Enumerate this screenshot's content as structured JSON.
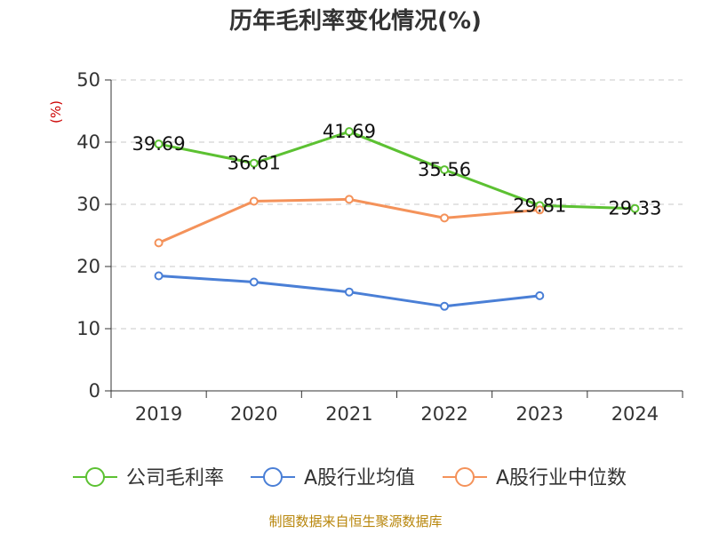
{
  "chart_data": {
    "type": "line",
    "title": "历年毛利率变化情况(%)",
    "y_unit_label": "(%)",
    "categories": [
      "2019",
      "2020",
      "2021",
      "2022",
      "2023",
      "2024"
    ],
    "ylim": [
      0,
      50
    ],
    "yticks": [
      0,
      10,
      20,
      30,
      40,
      50
    ],
    "grid": true,
    "legend_position": "bottom",
    "series": [
      {
        "name": "公司毛利率",
        "color": "#5cc132",
        "values": [
          39.69,
          36.61,
          41.69,
          35.56,
          29.81,
          29.33
        ],
        "labels": [
          "39.69",
          "36.61",
          "41.69",
          "35.56",
          "29.81",
          "29.33"
        ]
      },
      {
        "name": "A股行业均值",
        "color": "#4a7fd6",
        "values": [
          18.5,
          17.5,
          15.9,
          13.6,
          15.3,
          null
        ]
      },
      {
        "name": "A股行业中位数",
        "color": "#f4925a",
        "values": [
          23.8,
          30.5,
          30.8,
          27.8,
          29.1,
          null
        ]
      }
    ]
  },
  "source": "制图数据来自恒生聚源数据库"
}
